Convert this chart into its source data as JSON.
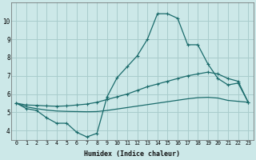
{
  "xlabel": "Humidex (Indice chaleur)",
  "xlim": [
    -0.5,
    23.5
  ],
  "ylim": [
    3.5,
    11.0
  ],
  "yticks": [
    4,
    5,
    6,
    7,
    8,
    9,
    10
  ],
  "xticks": [
    0,
    1,
    2,
    3,
    4,
    5,
    6,
    7,
    8,
    9,
    10,
    11,
    12,
    13,
    14,
    15,
    16,
    17,
    18,
    19,
    20,
    21,
    22,
    23
  ],
  "bg_color": "#cce8e8",
  "grid_color": "#a8cccc",
  "line_color": "#1a6b6b",
  "line1_x": [
    0,
    1,
    2,
    3,
    4,
    5,
    6,
    7,
    8,
    9,
    10,
    11,
    12,
    13,
    14,
    15,
    16,
    17,
    18,
    19,
    20,
    21,
    22,
    23
  ],
  "line1_y": [
    5.5,
    5.2,
    5.1,
    4.7,
    4.4,
    4.4,
    3.9,
    3.65,
    3.85,
    5.85,
    6.9,
    7.5,
    8.1,
    9.0,
    10.4,
    10.4,
    10.15,
    8.7,
    8.7,
    7.65,
    6.85,
    6.5,
    6.6,
    5.55
  ],
  "line2_x": [
    0,
    1,
    2,
    3,
    4,
    5,
    6,
    7,
    8,
    9,
    10,
    11,
    12,
    13,
    14,
    15,
    16,
    17,
    18,
    19,
    20,
    21,
    22,
    23
  ],
  "line2_y": [
    5.5,
    5.4,
    5.38,
    5.35,
    5.33,
    5.35,
    5.4,
    5.45,
    5.55,
    5.7,
    5.85,
    6.0,
    6.2,
    6.4,
    6.55,
    6.7,
    6.85,
    7.0,
    7.1,
    7.2,
    7.1,
    6.85,
    6.7,
    5.55
  ],
  "line3_x": [
    0,
    1,
    2,
    3,
    4,
    5,
    6,
    7,
    8,
    9,
    10,
    11,
    12,
    13,
    14,
    15,
    16,
    17,
    18,
    19,
    20,
    21,
    22,
    23
  ],
  "line3_y": [
    5.5,
    5.3,
    5.2,
    5.12,
    5.07,
    5.05,
    5.04,
    5.03,
    5.04,
    5.1,
    5.18,
    5.26,
    5.34,
    5.42,
    5.5,
    5.58,
    5.66,
    5.74,
    5.8,
    5.82,
    5.78,
    5.65,
    5.6,
    5.55
  ]
}
